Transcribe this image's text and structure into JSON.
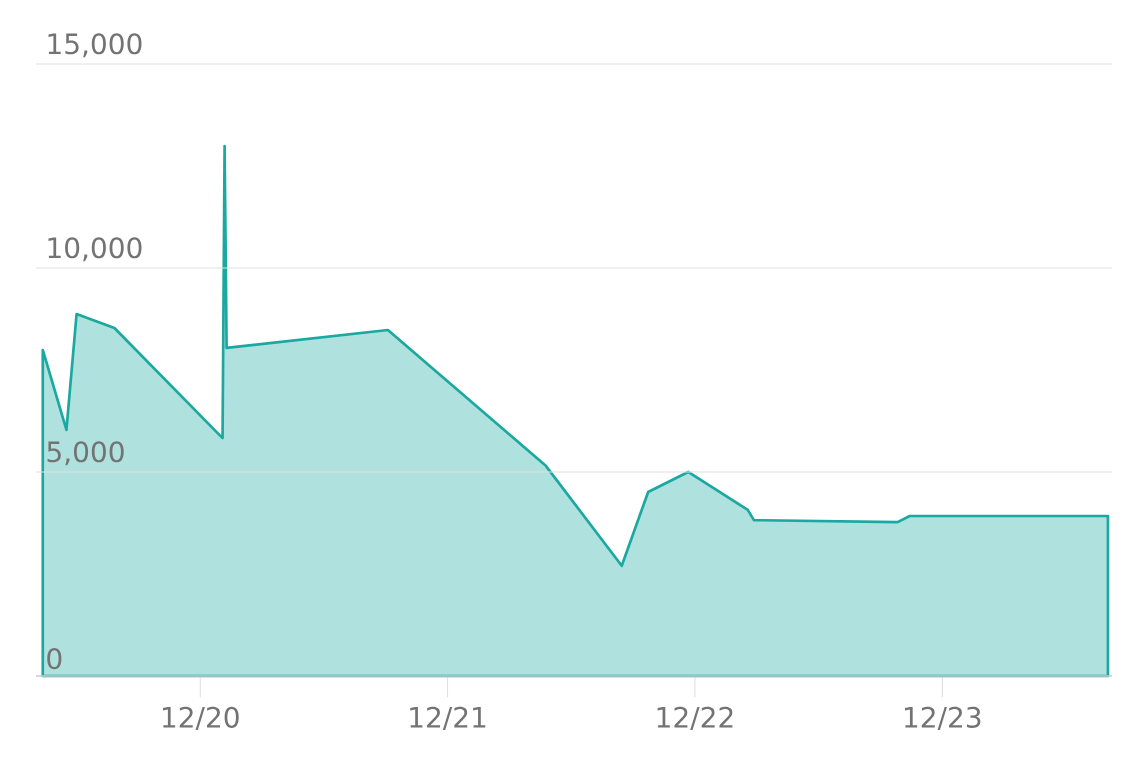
{
  "chart_data": {
    "type": "area",
    "color": "#1aa8a0",
    "x": [
      "2020-04-12",
      "2020-05-17",
      "2020-06-01",
      "2020-07-27",
      "2021-01-03",
      "2021-01-06",
      "2021-01-09",
      "2021-09-04",
      "2022-04-25",
      "2022-08-15",
      "2022-09-23",
      "2022-11-21",
      "2023-02-17",
      "2023-02-26",
      "2023-09-26",
      "2023-10-14",
      "2024-08-02"
    ],
    "values": [
      7990,
      6030,
      8870,
      8530,
      5830,
      12990,
      8040,
      8480,
      5150,
      2700,
      4510,
      5000,
      4070,
      3820,
      3770,
      3920,
      3920
    ],
    "xlim": [
      "2020-04-02",
      "2024-08-08"
    ],
    "ylim": [
      0,
      15000
    ],
    "xticks": [
      {
        "value": "2020-12-01",
        "label": "12/20"
      },
      {
        "value": "2021-12-01",
        "label": "12/21"
      },
      {
        "value": "2022-12-01",
        "label": "12/22"
      },
      {
        "value": "2023-12-01",
        "label": "12/23"
      }
    ],
    "yticks": [
      {
        "value": 0,
        "label": "0"
      },
      {
        "value": 5000,
        "label": "5,000"
      },
      {
        "value": 10000,
        "label": "10,000"
      },
      {
        "value": 15000,
        "label": "15,000"
      }
    ],
    "grid": "y",
    "marker": "none",
    "line_style": "solid"
  }
}
